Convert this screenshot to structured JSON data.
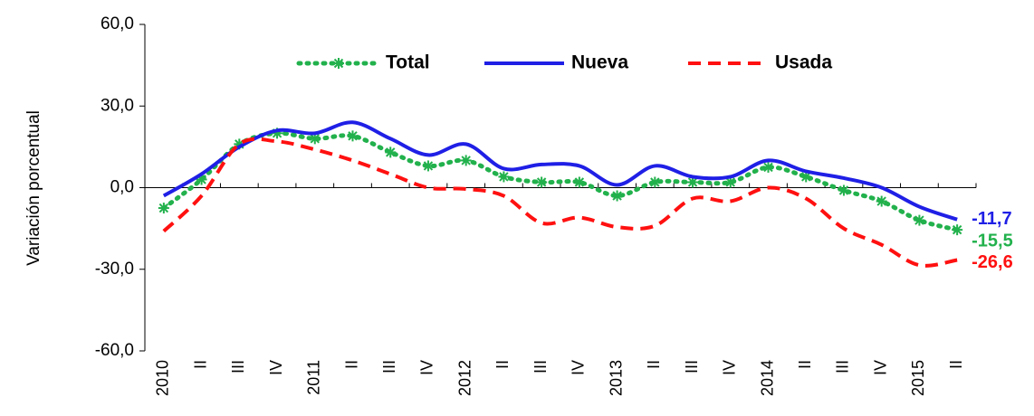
{
  "chart_data": {
    "type": "line",
    "y_label": "Variación porcentual",
    "categories": [
      "2010",
      "II",
      "III",
      "IV",
      "2011",
      "II",
      "III",
      "IV",
      "2012",
      "II",
      "III",
      "IV",
      "2013",
      "II",
      "III",
      "IV",
      "2014",
      "II",
      "III",
      "IV",
      "2015",
      "II"
    ],
    "series": [
      {
        "name": "Total",
        "color": "#22b14c",
        "line_style": "dotted",
        "marker": "asterisk",
        "values": [
          -7.5,
          3,
          16,
          20,
          18,
          19,
          13,
          8,
          10,
          4,
          2,
          2,
          -3,
          2,
          2,
          2,
          7.5,
          4,
          -1,
          -5,
          -12,
          -15.5
        ],
        "value_labels": [
          null,
          null,
          null,
          null,
          null,
          null,
          null,
          null,
          null,
          null,
          null,
          null,
          null,
          null,
          null,
          null,
          null,
          null,
          null,
          null,
          null,
          "-15,5"
        ]
      },
      {
        "name": "Nueva",
        "color": "#1f1fe6",
        "line_style": "solid",
        "values": [
          -3,
          5,
          15,
          21,
          20,
          24,
          18,
          12,
          16,
          7,
          8.5,
          8,
          1,
          8,
          4,
          4,
          10,
          6,
          3.5,
          0,
          -7,
          -11.7
        ],
        "value_labels": [
          null,
          null,
          null,
          null,
          null,
          null,
          null,
          null,
          null,
          null,
          null,
          null,
          null,
          null,
          null,
          null,
          null,
          null,
          null,
          null,
          null,
          "-11,7"
        ]
      },
      {
        "name": "Usada",
        "color": "#ff1010",
        "line_style": "dashed",
        "values": [
          -16,
          -3,
          16,
          17,
          14,
          10,
          5,
          0,
          -0.5,
          -3,
          -13,
          -11,
          -14.5,
          -14,
          -4,
          -5,
          0,
          -4,
          -15,
          -21,
          -28.5,
          -26.6
        ],
        "value_labels": [
          null,
          null,
          null,
          null,
          null,
          null,
          null,
          null,
          null,
          null,
          null,
          null,
          null,
          null,
          null,
          null,
          null,
          null,
          null,
          null,
          null,
          "-26,6"
        ]
      }
    ],
    "ylim": [
      -60,
      60
    ],
    "yticks": [
      {
        "value": -60,
        "label": "-60,0"
      },
      {
        "value": -30,
        "label": "-30,0"
      },
      {
        "value": 0,
        "label": "0,0"
      },
      {
        "value": 30,
        "label": "30,0"
      },
      {
        "value": 60,
        "label": "60,0"
      }
    ],
    "legend": "top",
    "grid": false
  }
}
